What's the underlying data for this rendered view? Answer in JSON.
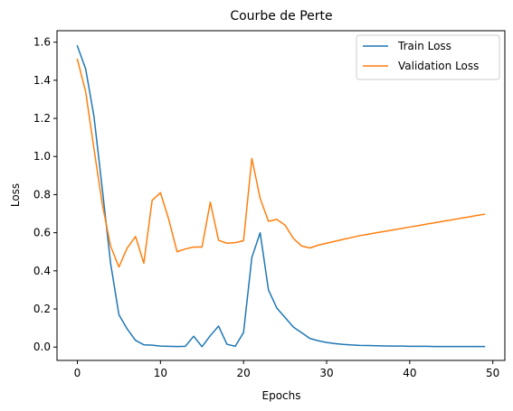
{
  "chart_data": {
    "type": "line",
    "title": "Courbe de Perte",
    "xlabel": "Epochs",
    "ylabel": "Loss",
    "xlim": [
      -2.45,
      51.45
    ],
    "ylim": [
      -0.07,
      1.66
    ],
    "xticks": [
      0,
      10,
      20,
      30,
      40,
      50
    ],
    "yticks": [
      0.0,
      0.2,
      0.4,
      0.6,
      0.8,
      1.0,
      1.2,
      1.4,
      1.6
    ],
    "legend_position": "top-right",
    "grid": false,
    "x": [
      0,
      1,
      2,
      3,
      4,
      5,
      6,
      7,
      8,
      9,
      10,
      11,
      12,
      13,
      14,
      15,
      16,
      17,
      18,
      19,
      20,
      21,
      22,
      23,
      24,
      25,
      26,
      27,
      28,
      29,
      30,
      31,
      32,
      33,
      34,
      35,
      36,
      37,
      38,
      39,
      40,
      41,
      42,
      43,
      44,
      45,
      46,
      47,
      48,
      49
    ],
    "series": [
      {
        "name": "Train Loss",
        "color": "#1f77b4",
        "values": [
          1.58,
          1.46,
          1.21,
          0.83,
          0.44,
          0.17,
          0.095,
          0.035,
          0.012,
          0.01,
          0.005,
          0.004,
          0.003,
          0.004,
          0.057,
          0.002,
          0.06,
          0.11,
          0.015,
          0.004,
          0.076,
          0.47,
          0.6,
          0.3,
          0.205,
          0.155,
          0.105,
          0.075,
          0.045,
          0.033,
          0.024,
          0.018,
          0.014,
          0.011,
          0.009,
          0.008,
          0.007,
          0.006,
          0.005,
          0.005,
          0.004,
          0.004,
          0.004,
          0.003,
          0.003,
          0.003,
          0.003,
          0.003,
          0.003,
          0.003
        ]
      },
      {
        "name": "Validation Loss",
        "color": "#ff7f0e",
        "values": [
          1.51,
          1.34,
          1.04,
          0.75,
          0.53,
          0.42,
          0.52,
          0.58,
          0.44,
          0.77,
          0.81,
          0.67,
          0.5,
          0.515,
          0.525,
          0.525,
          0.76,
          0.56,
          0.545,
          0.548,
          0.558,
          0.99,
          0.78,
          0.66,
          0.67,
          0.64,
          0.57,
          0.53,
          0.52,
          0.535,
          0.545,
          0.555,
          0.565,
          0.575,
          0.585,
          0.592,
          0.6,
          0.607,
          0.615,
          0.622,
          0.63,
          0.637,
          0.645,
          0.652,
          0.66,
          0.667,
          0.675,
          0.682,
          0.69,
          0.697
        ]
      }
    ]
  }
}
